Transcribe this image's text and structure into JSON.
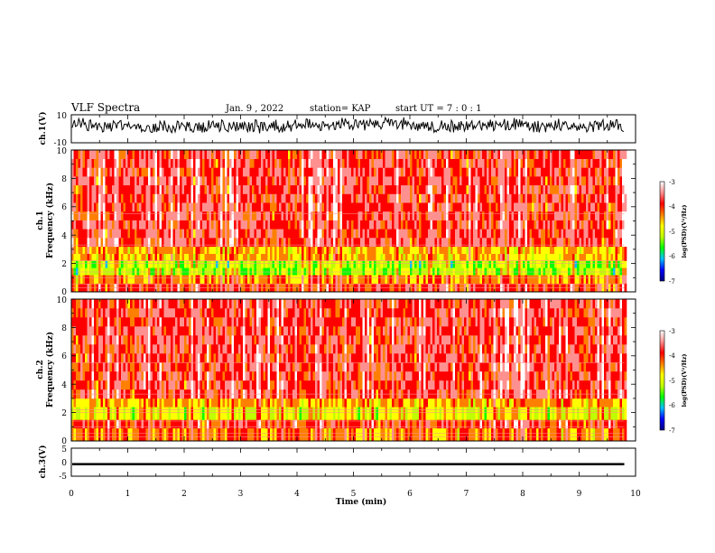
{
  "header": {
    "title": "VLF Spectra",
    "date": "Jan. 9 , 2022",
    "station": "station= KAP",
    "start": "start UT =  7 : 0  : 1"
  },
  "chart_data": {
    "type": "heatmap",
    "x_axis": {
      "label": "Time (min)",
      "range": [
        0,
        10
      ],
      "ticks": [
        "0",
        "1",
        "2",
        "3",
        "4",
        "5",
        "6",
        "7",
        "8",
        "9",
        "10"
      ],
      "data_end": 9.8
    },
    "panels": [
      {
        "id": "ch1-waveform",
        "type": "line",
        "ylabel": "ch.1(V)",
        "ylim": [
          -10,
          10
        ],
        "yticks": [
          "10",
          "-10"
        ],
        "mean": 2.5,
        "amplitude": 4.5
      },
      {
        "id": "ch1-spectrogram",
        "type": "heatmap",
        "ylabel_line1": "ch.1",
        "ylabel_line2": "Frequency (kHz)",
        "ylim": [
          0,
          10
        ],
        "yticks": [
          "0",
          "2",
          "4",
          "6",
          "8",
          "10"
        ],
        "bands_khz": [
          {
            "from": 0.0,
            "to": 0.6,
            "level": -4.0
          },
          {
            "from": 0.6,
            "to": 1.2,
            "level": -4.4
          },
          {
            "from": 1.2,
            "to": 2.2,
            "level": -5.2
          },
          {
            "from": 2.2,
            "to": 3.2,
            "level": -4.6
          },
          {
            "from": 3.2,
            "to": 10.0,
            "level": -3.8
          }
        ]
      },
      {
        "id": "ch2-spectrogram",
        "type": "heatmap",
        "ylabel_line1": "ch.2",
        "ylabel_line2": "Frequency (kHz)",
        "ylim": [
          0,
          10
        ],
        "yticks": [
          "0",
          "2",
          "4",
          "6",
          "8",
          "10"
        ],
        "bands_khz": [
          {
            "from": 0.0,
            "to": 0.9,
            "level": -4.3
          },
          {
            "from": 0.9,
            "to": 1.5,
            "level": -3.9
          },
          {
            "from": 1.5,
            "to": 2.4,
            "level": -4.9
          },
          {
            "from": 2.4,
            "to": 3.0,
            "level": -4.5
          },
          {
            "from": 3.0,
            "to": 10.0,
            "level": -3.8
          }
        ]
      },
      {
        "id": "ch3-waveform",
        "type": "line",
        "ylabel": "ch.3(V)",
        "ylim": [
          -5,
          5
        ],
        "yticks": [
          "5",
          "0",
          "-5"
        ],
        "mean": 0,
        "amplitude": 0.5
      }
    ],
    "colorbar": {
      "label": "log(PSD)(V²/Hz)",
      "range": [
        -7,
        -3
      ],
      "ticks": [
        "-3",
        "-4",
        "-5",
        "-6",
        "-7"
      ],
      "colors": [
        "#000080",
        "#0000ff",
        "#00c0ff",
        "#00ff00",
        "#c0ff00",
        "#ffff00",
        "#ff8000",
        "#ff0000",
        "#ff9090",
        "#ffffff"
      ]
    }
  }
}
